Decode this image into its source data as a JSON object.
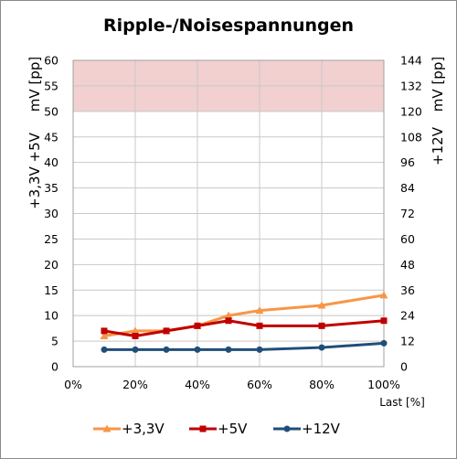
{
  "chart_data": {
    "type": "line",
    "title": "Ripple-/Noisespannungen",
    "xlabel": "Last [%]",
    "x": [
      10,
      20,
      30,
      40,
      50,
      60,
      80,
      100
    ],
    "xlim": [
      0,
      100
    ],
    "xticks": [
      "0%",
      "20%",
      "40%",
      "60%",
      "80%",
      "100%"
    ],
    "ylim": [
      0,
      60
    ],
    "yticks": [
      "0",
      "5",
      "10",
      "15",
      "20",
      "25",
      "30",
      "35",
      "40",
      "45",
      "50",
      "55",
      "60"
    ],
    "ylabel_left_top": "mV [pp]",
    "ylabel_left_bottom": "+3,3V +5V",
    "y2lim": [
      0,
      144
    ],
    "y2ticks": [
      "0",
      "12",
      "24",
      "36",
      "48",
      "60",
      "72",
      "84",
      "96",
      "108",
      "120",
      "132",
      "144"
    ],
    "ylabel_right_top": "mV [pp]",
    "ylabel_right_bottom": "+12V",
    "limit_band": {
      "from": 50,
      "to": 60,
      "color": "#f2d0d0"
    },
    "grid": true,
    "legend_position": "bottom",
    "series": [
      {
        "name": "+3,3V",
        "color": "#f79646",
        "marker": "triangle",
        "axis": "left",
        "values": [
          6,
          7,
          7,
          8,
          10,
          11,
          12,
          14
        ]
      },
      {
        "name": "+5V",
        "color": "#c00000",
        "marker": "square",
        "axis": "left",
        "values": [
          7,
          6,
          7,
          8,
          9,
          8,
          8,
          9
        ]
      },
      {
        "name": "+12V",
        "color": "#1f4e79",
        "marker": "circle",
        "axis": "right",
        "values": [
          8,
          8,
          8,
          8,
          8,
          8,
          9,
          11
        ]
      }
    ]
  }
}
